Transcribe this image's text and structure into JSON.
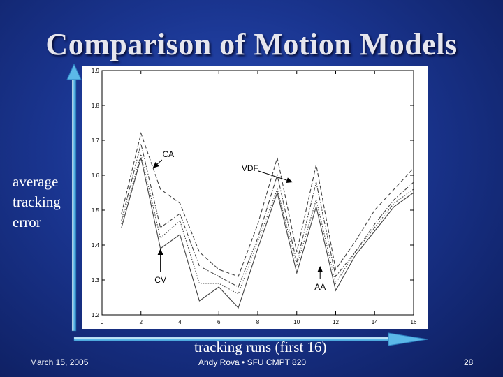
{
  "slide": {
    "title": "Comparison of Motion Models",
    "side_label_lines": [
      "average",
      "tracking",
      "error"
    ],
    "x_caption": "tracking runs (first 16)",
    "footer_date": "March 15, 2005",
    "footer_author": "Andy Rova • SFU CMPT 820",
    "footer_page": "28"
  },
  "colors": {
    "background": "#1a3590",
    "arrow": "#5bb8e8"
  },
  "chart_data": {
    "type": "line",
    "x": [
      1,
      2,
      3,
      4,
      5,
      6,
      7,
      8,
      9,
      10,
      11,
      12,
      13,
      14,
      15,
      16
    ],
    "xlim": [
      0,
      16
    ],
    "ylim": [
      1.2,
      1.9
    ],
    "x_ticks": [
      "0",
      "2",
      "4",
      "6",
      "8",
      "10",
      "12",
      "14",
      "16"
    ],
    "y_ticks": [
      "1.2",
      "1.3",
      "1.4",
      "1.5",
      "1.6",
      "1.7",
      "1.8",
      "1.9"
    ],
    "grid": false,
    "series": [
      {
        "name": "CA",
        "style": "dashed",
        "values": [
          1.49,
          1.72,
          1.56,
          1.52,
          1.38,
          1.33,
          1.31,
          1.46,
          1.65,
          1.38,
          1.63,
          1.33,
          1.41,
          1.5,
          1.56,
          1.62
        ]
      },
      {
        "name": "VDF",
        "style": "dash-dot",
        "values": [
          1.47,
          1.69,
          1.45,
          1.49,
          1.34,
          1.31,
          1.28,
          1.42,
          1.6,
          1.35,
          1.58,
          1.31,
          1.38,
          1.46,
          1.53,
          1.58
        ]
      },
      {
        "name": "AA",
        "style": "dotted",
        "values": [
          1.46,
          1.66,
          1.42,
          1.47,
          1.29,
          1.29,
          1.26,
          1.41,
          1.56,
          1.34,
          1.53,
          1.29,
          1.38,
          1.45,
          1.52,
          1.56
        ]
      },
      {
        "name": "CV",
        "style": "solid",
        "values": [
          1.45,
          1.65,
          1.39,
          1.43,
          1.24,
          1.28,
          1.22,
          1.39,
          1.55,
          1.32,
          1.51,
          1.27,
          1.37,
          1.44,
          1.51,
          1.55
        ]
      }
    ],
    "annotations": [
      {
        "text": "CA",
        "series": "CA",
        "x": 2.6,
        "y": 1.62,
        "tx": 3.4,
        "ty": 1.66
      },
      {
        "text": "VDF",
        "series": "VDF",
        "x": 9.8,
        "y": 1.58,
        "tx": 7.6,
        "ty": 1.62
      },
      {
        "text": "CV",
        "series": "CV",
        "x": 3.0,
        "y": 1.39,
        "tx": 3.0,
        "ty": 1.3
      },
      {
        "text": "AA",
        "series": "AA",
        "x": 11.2,
        "y": 1.34,
        "tx": 11.2,
        "ty": 1.28
      }
    ]
  }
}
